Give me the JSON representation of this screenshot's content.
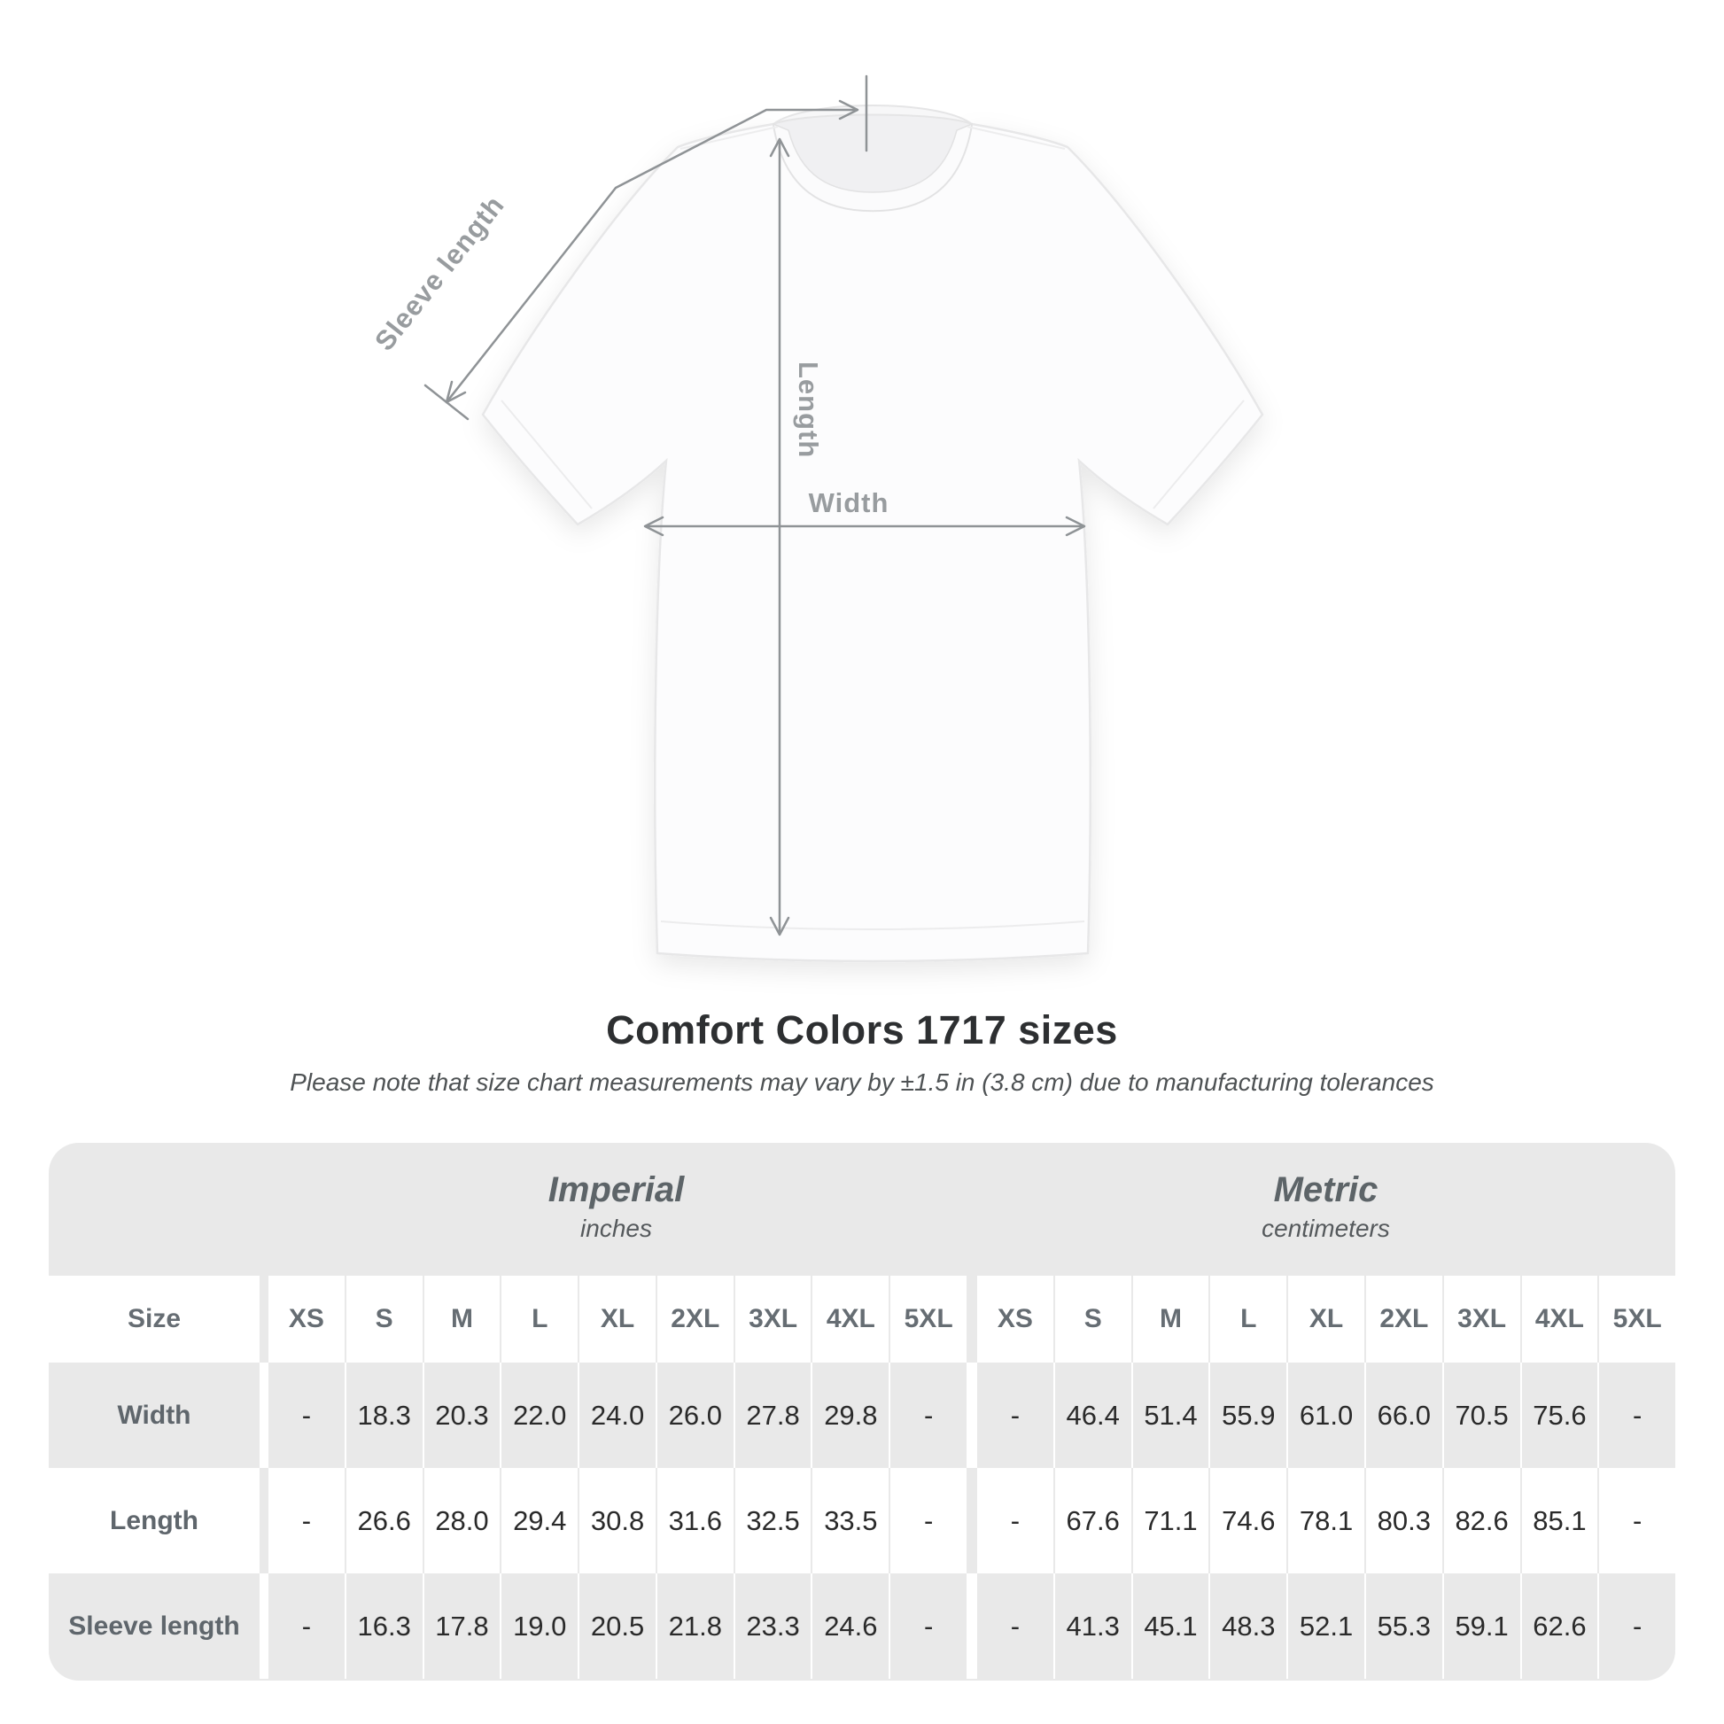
{
  "diagram": {
    "sleeve_length_label": "Sleeve length",
    "length_label": "Length",
    "width_label": "Width"
  },
  "title": "Comfort Colors 1717 sizes",
  "subtitle": "Please note that size chart measurements may vary by ±1.5 in (3.8 cm) due to manufacturing tolerances",
  "table": {
    "groups": [
      {
        "label": "Imperial",
        "sublabel": "inches"
      },
      {
        "label": "Metric",
        "sublabel": "centimeters"
      }
    ],
    "size_header": "Size",
    "sizes": [
      "XS",
      "S",
      "M",
      "L",
      "XL",
      "2XL",
      "3XL",
      "4XL",
      "5XL"
    ],
    "rows": [
      {
        "label": "Width",
        "imperial": [
          "-",
          "18.3",
          "20.3",
          "22.0",
          "24.0",
          "26.0",
          "27.8",
          "29.8",
          "-"
        ],
        "metric": [
          "-",
          "46.4",
          "51.4",
          "55.9",
          "61.0",
          "66.0",
          "70.5",
          "75.6",
          "-"
        ]
      },
      {
        "label": "Length",
        "imperial": [
          "-",
          "26.6",
          "28.0",
          "29.4",
          "30.8",
          "31.6",
          "32.5",
          "33.5",
          "-"
        ],
        "metric": [
          "-",
          "67.6",
          "71.1",
          "74.6",
          "78.1",
          "80.3",
          "82.6",
          "85.1",
          "-"
        ]
      },
      {
        "label": "Sleeve length",
        "imperial": [
          "-",
          "16.3",
          "17.8",
          "19.0",
          "20.5",
          "21.8",
          "23.3",
          "24.6",
          "-"
        ],
        "metric": [
          "-",
          "41.3",
          "45.1",
          "48.3",
          "52.1",
          "55.3",
          "59.1",
          "62.6",
          "-"
        ]
      }
    ]
  },
  "colors": {
    "card_bg": "#e9e9e9",
    "measure_line": "#8f9396",
    "measure_label": "#989c9f",
    "value_text": "#2a2a2a",
    "header_text": "#5f666c"
  }
}
